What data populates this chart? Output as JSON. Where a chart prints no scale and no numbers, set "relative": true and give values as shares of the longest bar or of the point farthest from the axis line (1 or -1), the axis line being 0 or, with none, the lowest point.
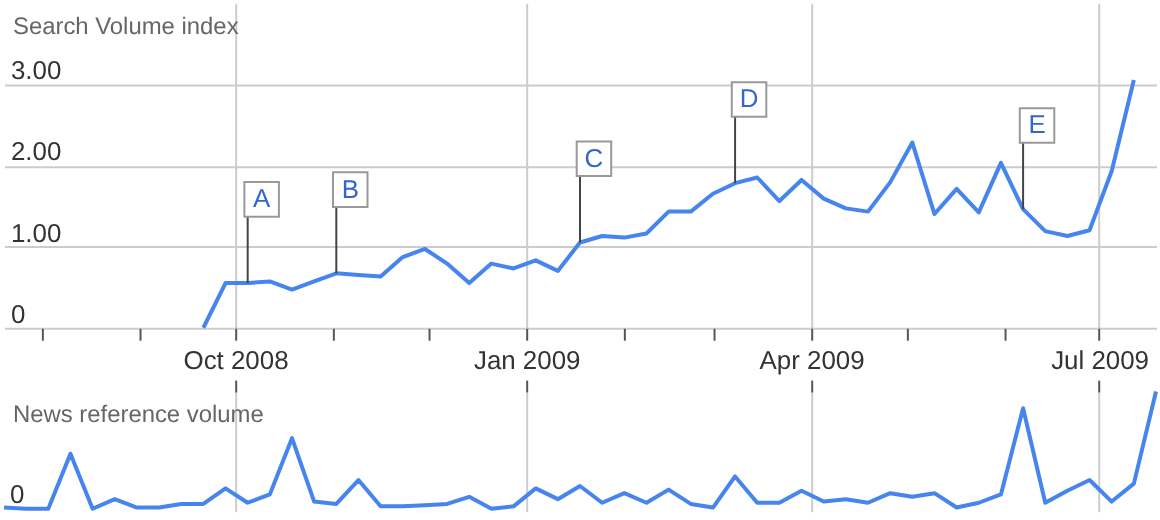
{
  "chart_data": [
    {
      "type": "line",
      "ylabel": "Search Volume index",
      "color": "#4684ee",
      "x": [
        "2008-09-21",
        "2008-09-28",
        "2008-10-05",
        "2008-10-12",
        "2008-10-19",
        "2008-10-26",
        "2008-11-02",
        "2008-11-09",
        "2008-11-16",
        "2008-11-23",
        "2008-11-30",
        "2008-12-07",
        "2008-12-14",
        "2008-12-21",
        "2008-12-28",
        "2009-01-04",
        "2009-01-11",
        "2009-01-18",
        "2009-01-25",
        "2009-02-01",
        "2009-02-08",
        "2009-02-15",
        "2009-02-22",
        "2009-03-01",
        "2009-03-08",
        "2009-03-15",
        "2009-03-22",
        "2009-03-29",
        "2009-04-05",
        "2009-04-12",
        "2009-04-19",
        "2009-04-26",
        "2009-05-03",
        "2009-05-10",
        "2009-05-17",
        "2009-05-24",
        "2009-05-31",
        "2009-06-07",
        "2009-06-14",
        "2009-06-21",
        "2009-06-28",
        "2009-07-05",
        "2009-07-12"
      ],
      "values": [
        0,
        0.55,
        0.55,
        0.57,
        0.47,
        0.57,
        0.67,
        0.65,
        0.63,
        0.87,
        0.97,
        0.79,
        0.55,
        0.79,
        0.73,
        0.83,
        0.7,
        1.05,
        1.13,
        1.11,
        1.16,
        1.43,
        1.43,
        1.65,
        1.78,
        1.85,
        1.56,
        1.82,
        1.59,
        1.47,
        1.43,
        1.79,
        2.28,
        1.4,
        1.71,
        1.42,
        2.03,
        1.46,
        1.19,
        1.13,
        1.2,
        1.93,
        3.05
      ],
      "xlim": [
        "2008-07-20",
        "2009-07-19"
      ],
      "xticks": [
        {
          "value": "2008-08-01",
          "label": null
        },
        {
          "value": "2008-09-01",
          "label": null
        },
        {
          "value": "2008-10-01",
          "label": "Oct 2008"
        },
        {
          "value": "2008-11-01",
          "label": null
        },
        {
          "value": "2008-12-01",
          "label": null
        },
        {
          "value": "2009-01-01",
          "label": "Jan 2009"
        },
        {
          "value": "2009-02-01",
          "label": null
        },
        {
          "value": "2009-03-01",
          "label": null
        },
        {
          "value": "2009-04-01",
          "label": "Apr 2009"
        },
        {
          "value": "2009-05-01",
          "label": null
        },
        {
          "value": "2009-06-01",
          "label": null
        },
        {
          "value": "2009-07-01",
          "label": "Jul 2009"
        }
      ],
      "ylim": [
        0,
        4
      ],
      "yticks": [
        {
          "value": 0,
          "label": "0"
        },
        {
          "value": 1,
          "label": "1.00"
        },
        {
          "value": 2,
          "label": "2.00"
        },
        {
          "value": 3,
          "label": "3.00"
        }
      ],
      "grid": true,
      "annotations": [
        {
          "text": "A",
          "x": "2008-10-05",
          "y": 0.55
        },
        {
          "text": "B",
          "x": "2008-11-02",
          "y": 0.67
        },
        {
          "text": "C",
          "x": "2009-01-18",
          "y": 1.05
        },
        {
          "text": "D",
          "x": "2009-03-08",
          "y": 1.78
        },
        {
          "text": "E",
          "x": "2009-06-07",
          "y": 1.46
        }
      ]
    },
    {
      "type": "line",
      "ylabel": "News reference volume",
      "color": "#4684ee",
      "relative": true,
      "x": [
        "2008-07-20",
        "2008-07-27",
        "2008-08-03",
        "2008-08-10",
        "2008-08-17",
        "2008-08-24",
        "2008-08-31",
        "2008-09-07",
        "2008-09-14",
        "2008-09-21",
        "2008-09-28",
        "2008-10-05",
        "2008-10-12",
        "2008-10-19",
        "2008-10-26",
        "2008-11-02",
        "2008-11-09",
        "2008-11-16",
        "2008-11-23",
        "2008-11-30",
        "2008-12-07",
        "2008-12-14",
        "2008-12-21",
        "2008-12-28",
        "2009-01-04",
        "2009-01-11",
        "2009-01-18",
        "2009-01-25",
        "2009-02-01",
        "2009-02-08",
        "2009-02-15",
        "2009-02-22",
        "2009-03-01",
        "2009-03-08",
        "2009-03-15",
        "2009-03-22",
        "2009-03-29",
        "2009-04-05",
        "2009-04-12",
        "2009-04-19",
        "2009-04-26",
        "2009-05-03",
        "2009-05-10",
        "2009-05-17",
        "2009-05-24",
        "2009-05-31",
        "2009-06-07",
        "2009-06-14",
        "2009-06-21",
        "2009-06-28",
        "2009-07-05",
        "2009-07-12",
        "2009-07-19"
      ],
      "values": [
        0.03,
        0.02,
        0.02,
        0.48,
        0.02,
        0.1,
        0.03,
        0.03,
        0.06,
        0.06,
        0.19,
        0.07,
        0.14,
        0.61,
        0.08,
        0.06,
        0.26,
        0.04,
        0.04,
        0.05,
        0.06,
        0.12,
        0.02,
        0.04,
        0.19,
        0.1,
        0.21,
        0.07,
        0.15,
        0.07,
        0.18,
        0.06,
        0.03,
        0.29,
        0.07,
        0.07,
        0.17,
        0.08,
        0.1,
        0.07,
        0.15,
        0.12,
        0.15,
        0.03,
        0.07,
        0.14,
        0.86,
        0.07,
        0.17,
        0.26,
        0.08,
        0.23,
        1
      ],
      "xlim": [
        "2008-07-20",
        "2009-07-19"
      ],
      "xticks": [
        {
          "value": "2008-10-01",
          "label": null
        },
        {
          "value": "2009-01-01",
          "label": null
        },
        {
          "value": "2009-04-01",
          "label": null
        },
        {
          "value": "2009-07-01",
          "label": null
        }
      ],
      "tick_labels": false,
      "grid": "x",
      "annotations": [
        "0"
      ]
    }
  ]
}
